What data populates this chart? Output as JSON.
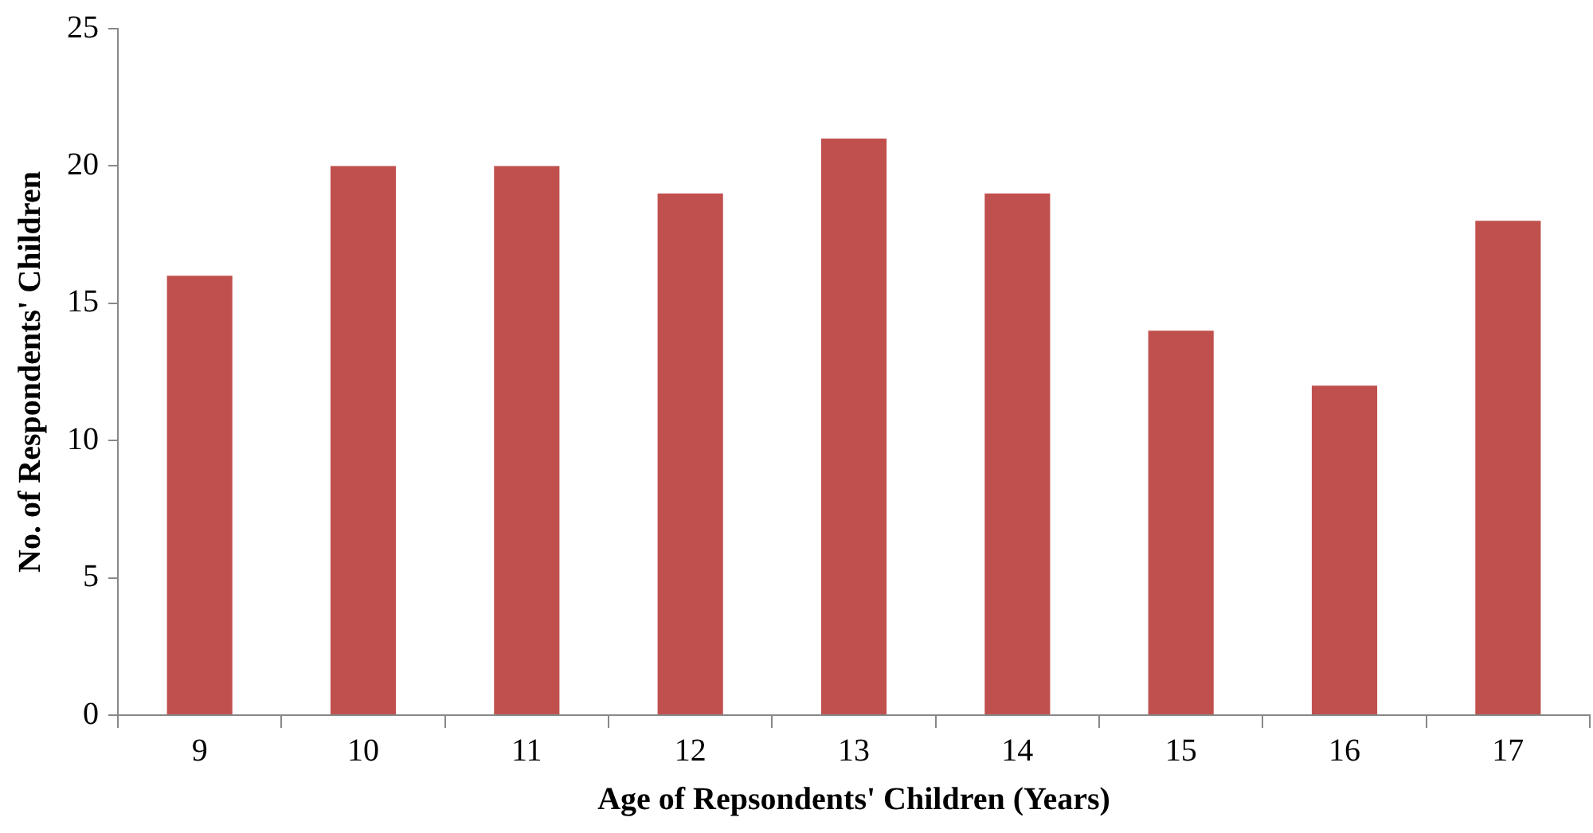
{
  "chart_data": {
    "type": "bar",
    "xlabel": "Age of Repsondents' Children (Years)",
    "ylabel": "No. of Respondents' Children",
    "categories": [
      "9",
      "10",
      "11",
      "12",
      "13",
      "14",
      "15",
      "16",
      "17"
    ],
    "values": [
      16,
      20,
      20,
      19,
      21,
      19,
      14,
      12,
      18
    ],
    "color": "#c0504d",
    "ylim": [
      0,
      25
    ],
    "yticks": [
      0,
      5,
      10,
      15,
      20,
      25
    ],
    "grid": false,
    "legend": false
  }
}
